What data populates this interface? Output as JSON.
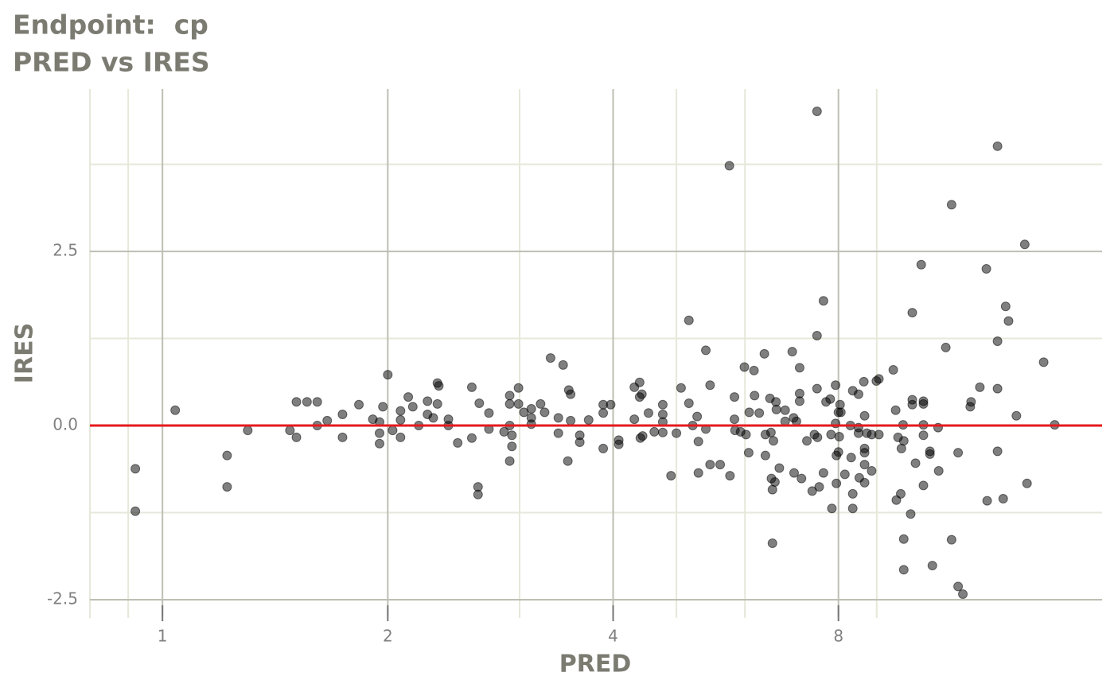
{
  "chart_data": {
    "type": "scatter",
    "title": "Endpoint:  cp",
    "subtitle": "PRED vs IRES",
    "x_label": "PRED",
    "y_label": "IRES",
    "x_scale": "log2",
    "xlim": [
      0.8,
      18
    ],
    "ylim": [
      -2.74,
      4.83
    ],
    "xticks": [
      1,
      2,
      4,
      8
    ],
    "x_minor_ticks": [
      0.8,
      0.9,
      3,
      4.86,
      6,
      9
    ],
    "yticks": [
      -2.5,
      {
        "value": 0,
        "label": "0.0"
      },
      2.5
    ],
    "y_minor_ticks": [
      -1.25,
      1.25,
      3.75
    ],
    "grid": true,
    "color": "#000000",
    "alpha": 0.5,
    "reference_line": {
      "y": 0,
      "color": "#e41a1c"
    },
    "x": [
      0.92,
      0.92,
      1.04,
      1.22,
      1.22,
      1.3,
      1.48,
      1.51,
      1.51,
      1.56,
      1.61,
      1.61,
      1.66,
      1.74,
      1.74,
      1.83,
      1.91,
      1.95,
      1.95,
      1.95,
      1.97,
      2.0,
      2.03,
      2.08,
      2.08,
      2.08,
      2.13,
      2.16,
      2.2,
      2.26,
      2.26,
      2.3,
      2.33,
      2.33,
      2.34,
      2.41,
      2.41,
      2.48,
      2.59,
      2.59,
      2.64,
      2.64,
      2.65,
      2.73,
      2.73,
      2.86,
      2.91,
      2.91,
      2.91,
      2.91,
      2.93,
      2.93,
      2.99,
      2.99,
      3.04,
      3.11,
      3.11,
      3.11,
      3.2,
      3.24,
      3.3,
      3.38,
      3.38,
      3.43,
      3.48,
      3.49,
      3.51,
      3.51,
      3.61,
      3.61,
      3.71,
      3.88,
      3.88,
      3.88,
      3.97,
      4.07,
      4.07,
      4.27,
      4.27,
      4.34,
      4.34,
      4.35,
      4.37,
      4.38,
      4.46,
      4.54,
      4.66,
      4.66,
      4.66,
      4.66,
      4.78,
      4.86,
      4.93,
      5.05,
      5.05,
      5.11,
      5.18,
      5.2,
      5.2,
      5.32,
      5.32,
      5.39,
      5.39,
      5.56,
      5.72,
      5.73,
      5.81,
      5.81,
      5.82,
      5.92,
      5.99,
      6.02,
      6.07,
      6.08,
      6.17,
      6.18,
      6.27,
      6.37,
      6.39,
      6.39,
      6.48,
      6.5,
      6.51,
      6.53,
      6.53,
      6.55,
      6.58,
      6.6,
      6.61,
      6.67,
      6.79,
      6.79,
      6.94,
      6.97,
      6.98,
      7.03,
      7.1,
      7.1,
      7.1,
      7.14,
      7.26,
      7.38,
      7.43,
      7.49,
      7.49,
      7.49,
      7.5,
      7.54,
      7.64,
      7.64,
      7.7,
      7.8,
      7.82,
      7.84,
      7.93,
      7.93,
      7.95,
      7.95,
      8.0,
      8.0,
      8.02,
      8.04,
      8.06,
      8.16,
      8.3,
      8.32,
      8.36,
      8.36,
      8.36,
      8.51,
      8.51,
      8.51,
      8.53,
      8.65,
      8.67,
      8.67,
      8.67,
      8.67,
      8.67,
      8.73,
      8.86,
      8.86,
      8.99,
      9.06,
      9.06,
      9.47,
      9.54,
      9.56,
      9.61,
      9.69,
      9.71,
      9.76,
      9.78,
      9.78,
      9.78,
      9.99,
      10.04,
      10.04,
      10.04,
      10.14,
      10.32,
      10.39,
      10.39,
      10.39,
      10.39,
      10.39,
      10.6,
      10.6,
      10.68,
      10.87,
      10.89,
      11.13,
      11.33,
      11.33,
      11.56,
      11.56,
      11.73,
      12.0,
      12.03,
      12.36,
      12.61,
      12.64,
      13.05,
      13.05,
      13.05,
      13.05,
      13.28,
      13.38,
      13.5,
      13.83,
      14.19,
      14.29,
      15.04,
      15.56
    ],
    "y": [
      -0.62,
      -1.23,
      0.22,
      -0.43,
      -0.88,
      -0.07,
      -0.07,
      0.34,
      -0.17,
      0.34,
      0.34,
      0.0,
      0.07,
      0.16,
      -0.17,
      0.3,
      0.09,
      0.05,
      -0.11,
      -0.26,
      0.27,
      0.73,
      -0.07,
      0.21,
      0.08,
      -0.17,
      0.41,
      0.27,
      0.0,
      0.35,
      0.16,
      0.11,
      0.61,
      0.31,
      0.57,
      0.09,
      0.0,
      -0.25,
      0.55,
      -0.18,
      -0.88,
      -0.99,
      0.32,
      0.18,
      -0.05,
      -0.09,
      0.43,
      0.31,
      0.0,
      -0.51,
      -0.3,
      -0.14,
      0.54,
      0.31,
      0.19,
      0.24,
      0.11,
      0.02,
      0.31,
      0.19,
      0.97,
      0.11,
      -0.11,
      0.87,
      -0.51,
      0.51,
      0.45,
      0.07,
      -0.24,
      -0.14,
      0.08,
      0.3,
      0.18,
      -0.33,
      0.3,
      -0.21,
      -0.27,
      0.55,
      0.09,
      0.62,
      0.41,
      -0.18,
      0.45,
      -0.15,
      0.18,
      -0.09,
      0.3,
      0.16,
      0.05,
      -0.1,
      -0.72,
      -0.11,
      0.54,
      1.51,
      0.32,
      0.0,
      0.13,
      -0.23,
      -0.68,
      1.08,
      -0.05,
      0.58,
      -0.56,
      -0.56,
      3.73,
      -0.72,
      0.41,
      0.09,
      -0.07,
      -0.09,
      0.84,
      -0.13,
      -0.39,
      0.19,
      0.79,
      0.43,
      0.18,
      1.03,
      -0.43,
      -0.13,
      0.39,
      -0.1,
      -0.76,
      -1.69,
      -0.92,
      -0.22,
      -0.81,
      0.34,
      0.23,
      -0.61,
      0.22,
      0.06,
      1.06,
      0.11,
      -0.68,
      0.06,
      0.83,
      0.46,
      0.35,
      -0.76,
      -0.22,
      -0.94,
      -0.13,
      4.51,
      1.29,
      0.53,
      -0.17,
      -0.88,
      1.79,
      -0.68,
      0.34,
      0.38,
      -0.13,
      -1.19,
      0.58,
      0.03,
      -0.43,
      -0.83,
      0.19,
      -0.38,
      -0.16,
      0.3,
      0.19,
      -0.7,
      0.0,
      -0.46,
      0.5,
      -0.98,
      -1.19,
      0.45,
      -0.03,
      -0.11,
      -0.75,
      0.63,
      0.14,
      -0.33,
      -0.39,
      -0.56,
      -0.82,
      -0.11,
      -0.13,
      -0.65,
      0.64,
      0.67,
      -0.13,
      0.8,
      0.22,
      -1.07,
      -0.17,
      -0.98,
      -0.33,
      0.01,
      -0.22,
      -1.63,
      -2.07,
      -1.27,
      1.62,
      0.37,
      0.3,
      -0.54,
      2.31,
      0.35,
      0.31,
      0.01,
      -0.14,
      -0.86,
      -0.37,
      -0.41,
      -2.01,
      -0.03,
      -0.65,
      1.12,
      3.17,
      -1.64,
      -0.39,
      -2.31,
      -2.42,
      0.27,
      0.34,
      0.55,
      2.25,
      -1.08,
      4.01,
      1.21,
      0.53,
      -0.37,
      -1.05,
      1.71,
      1.5,
      0.14,
      2.6,
      -0.83,
      0.91,
      0.01
    ]
  }
}
